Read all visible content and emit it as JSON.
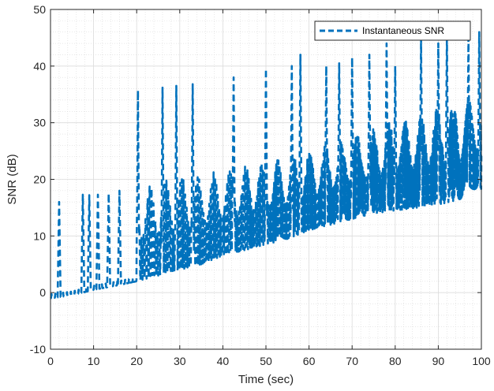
{
  "chart_data": {
    "type": "line",
    "title": "",
    "xlabel": "Time (sec)",
    "ylabel": "SNR (dB)",
    "xlim": [
      0,
      100
    ],
    "ylim": [
      -10,
      50
    ],
    "xticks": [
      "0",
      "10",
      "20",
      "30",
      "40",
      "50",
      "60",
      "70",
      "80",
      "90",
      "100"
    ],
    "yticks": [
      "-10",
      "0",
      "10",
      "20",
      "30",
      "40",
      "50"
    ],
    "grid": true,
    "minor_grid": true,
    "legend": {
      "position": "top-right",
      "entries": [
        "Instantaneous SNR"
      ]
    },
    "series": [
      {
        "name": "Instantaneous SNR",
        "color": "#0072BD",
        "line_style": "dashed",
        "baseline": [
          [
            0,
            -1
          ],
          [
            5,
            -0.5
          ],
          [
            10,
            0.5
          ],
          [
            15,
            1.2
          ],
          [
            20,
            2
          ],
          [
            25,
            3
          ],
          [
            30,
            4
          ],
          [
            35,
            5
          ],
          [
            40,
            6.5
          ],
          [
            45,
            7.5
          ],
          [
            50,
            8.5
          ],
          [
            55,
            9.5
          ],
          [
            60,
            11
          ],
          [
            65,
            12
          ],
          [
            70,
            13
          ],
          [
            75,
            14
          ],
          [
            80,
            14.5
          ],
          [
            85,
            15
          ],
          [
            90,
            15.5
          ],
          [
            95,
            16.5
          ],
          [
            100,
            17.3
          ]
        ],
        "upper_envelope": [
          [
            20,
            18
          ],
          [
            25,
            19.5
          ],
          [
            30,
            20.5
          ],
          [
            35,
            21
          ],
          [
            40,
            21.5
          ],
          [
            45,
            22.5
          ],
          [
            50,
            23
          ],
          [
            55,
            24
          ],
          [
            60,
            25
          ],
          [
            65,
            26.5
          ],
          [
            70,
            28
          ],
          [
            75,
            29
          ],
          [
            80,
            30.5
          ],
          [
            85,
            31.5
          ],
          [
            90,
            33
          ],
          [
            95,
            34
          ],
          [
            100,
            35
          ]
        ],
        "peaks": [
          [
            2,
            16
          ],
          [
            7.5,
            17.3
          ],
          [
            9,
            17.2
          ],
          [
            11,
            17.3
          ],
          [
            13.5,
            17.5
          ],
          [
            16,
            18
          ],
          [
            20.3,
            35.7
          ],
          [
            26,
            36.2
          ],
          [
            29.2,
            36.5
          ],
          [
            33,
            36.8
          ],
          [
            42.5,
            38
          ],
          [
            50,
            39.5
          ],
          [
            56,
            40
          ],
          [
            58,
            42
          ],
          [
            64,
            40
          ],
          [
            67,
            40.5
          ],
          [
            70,
            41.5
          ],
          [
            74,
            42
          ],
          [
            78,
            44
          ],
          [
            80,
            40
          ],
          [
            86,
            45
          ],
          [
            90,
            44
          ],
          [
            92,
            45.5
          ],
          [
            97,
            45
          ],
          [
            99.5,
            46
          ]
        ]
      }
    ]
  }
}
